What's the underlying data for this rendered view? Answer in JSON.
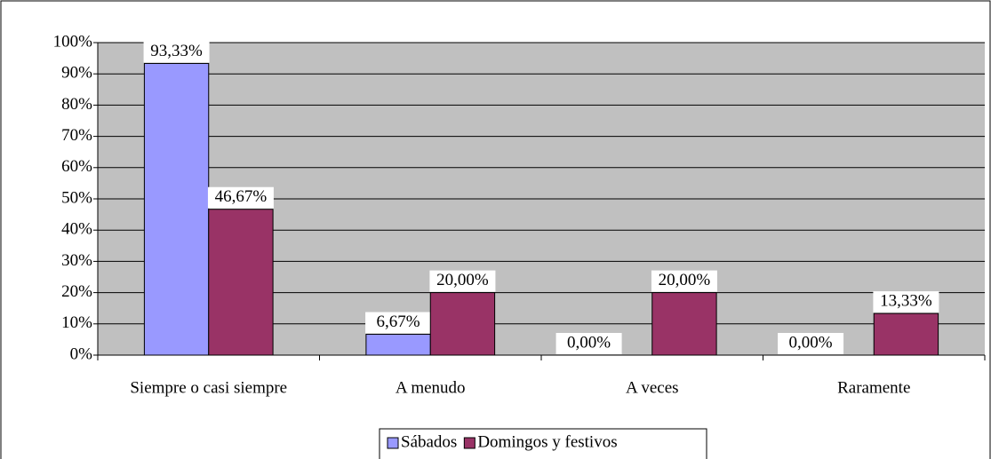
{
  "chart_data": {
    "type": "bar",
    "categories": [
      "Siempre o casi siempre",
      "A menudo",
      "A veces",
      "Raramente"
    ],
    "series": [
      {
        "name": "Sábados",
        "color": "#9999ff",
        "values": [
          93.33,
          6.67,
          0,
          0
        ],
        "value_labels": [
          "93,33%",
          "6,67%",
          "0,00%",
          "0,00%"
        ]
      },
      {
        "name": "Domingos y festivos",
        "color": "#993366",
        "values": [
          46.67,
          20,
          20,
          13.33
        ],
        "value_labels": [
          "46,67%",
          "20,00%",
          "20,00%",
          "13,33%"
        ]
      }
    ],
    "ylim": [
      0,
      100
    ],
    "yticks": [
      {
        "value": 0,
        "label": "0%"
      },
      {
        "value": 10,
        "label": "10%"
      },
      {
        "value": 20,
        "label": "20%"
      },
      {
        "value": 30,
        "label": "30%"
      },
      {
        "value": 40,
        "label": "40%"
      },
      {
        "value": 50,
        "label": "50%"
      },
      {
        "value": 60,
        "label": "60%"
      },
      {
        "value": 70,
        "label": "70%"
      },
      {
        "value": 80,
        "label": "80%"
      },
      {
        "value": 90,
        "label": "90%"
      },
      {
        "value": 100,
        "label": "100%"
      }
    ],
    "grid": true,
    "legend": "bottom"
  }
}
